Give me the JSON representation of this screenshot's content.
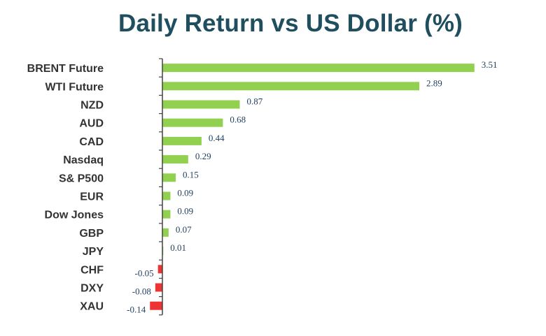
{
  "chart_data": {
    "type": "bar",
    "orientation": "horizontal",
    "title": "Daily Return vs US Dollar (%)",
    "categories": [
      "BRENT Future",
      "WTI Future",
      "NZD",
      "AUD",
      "CAD",
      "Nasdaq",
      "S& P500",
      "EUR",
      "Dow Jones",
      "GBP",
      "JPY",
      "CHF",
      "DXY",
      "XAU"
    ],
    "values": [
      3.51,
      2.89,
      0.87,
      0.68,
      0.44,
      0.29,
      0.15,
      0.09,
      0.09,
      0.07,
      0.01,
      -0.05,
      -0.08,
      -0.14
    ],
    "value_labels": [
      "3.51",
      "2.89",
      "0.87",
      "0.68",
      "0.44",
      "0.29",
      "0.15",
      "0.09",
      "0.09",
      "0.07",
      "0.01",
      "-0.05",
      "-0.08",
      "-0.14"
    ],
    "xlim": [
      -0.2,
      3.6
    ],
    "grid": false,
    "legend": "none",
    "colors": {
      "positive": "#92d050",
      "negative": "#ee3333",
      "axis": "#444444",
      "title": "#1f4e5f"
    }
  }
}
